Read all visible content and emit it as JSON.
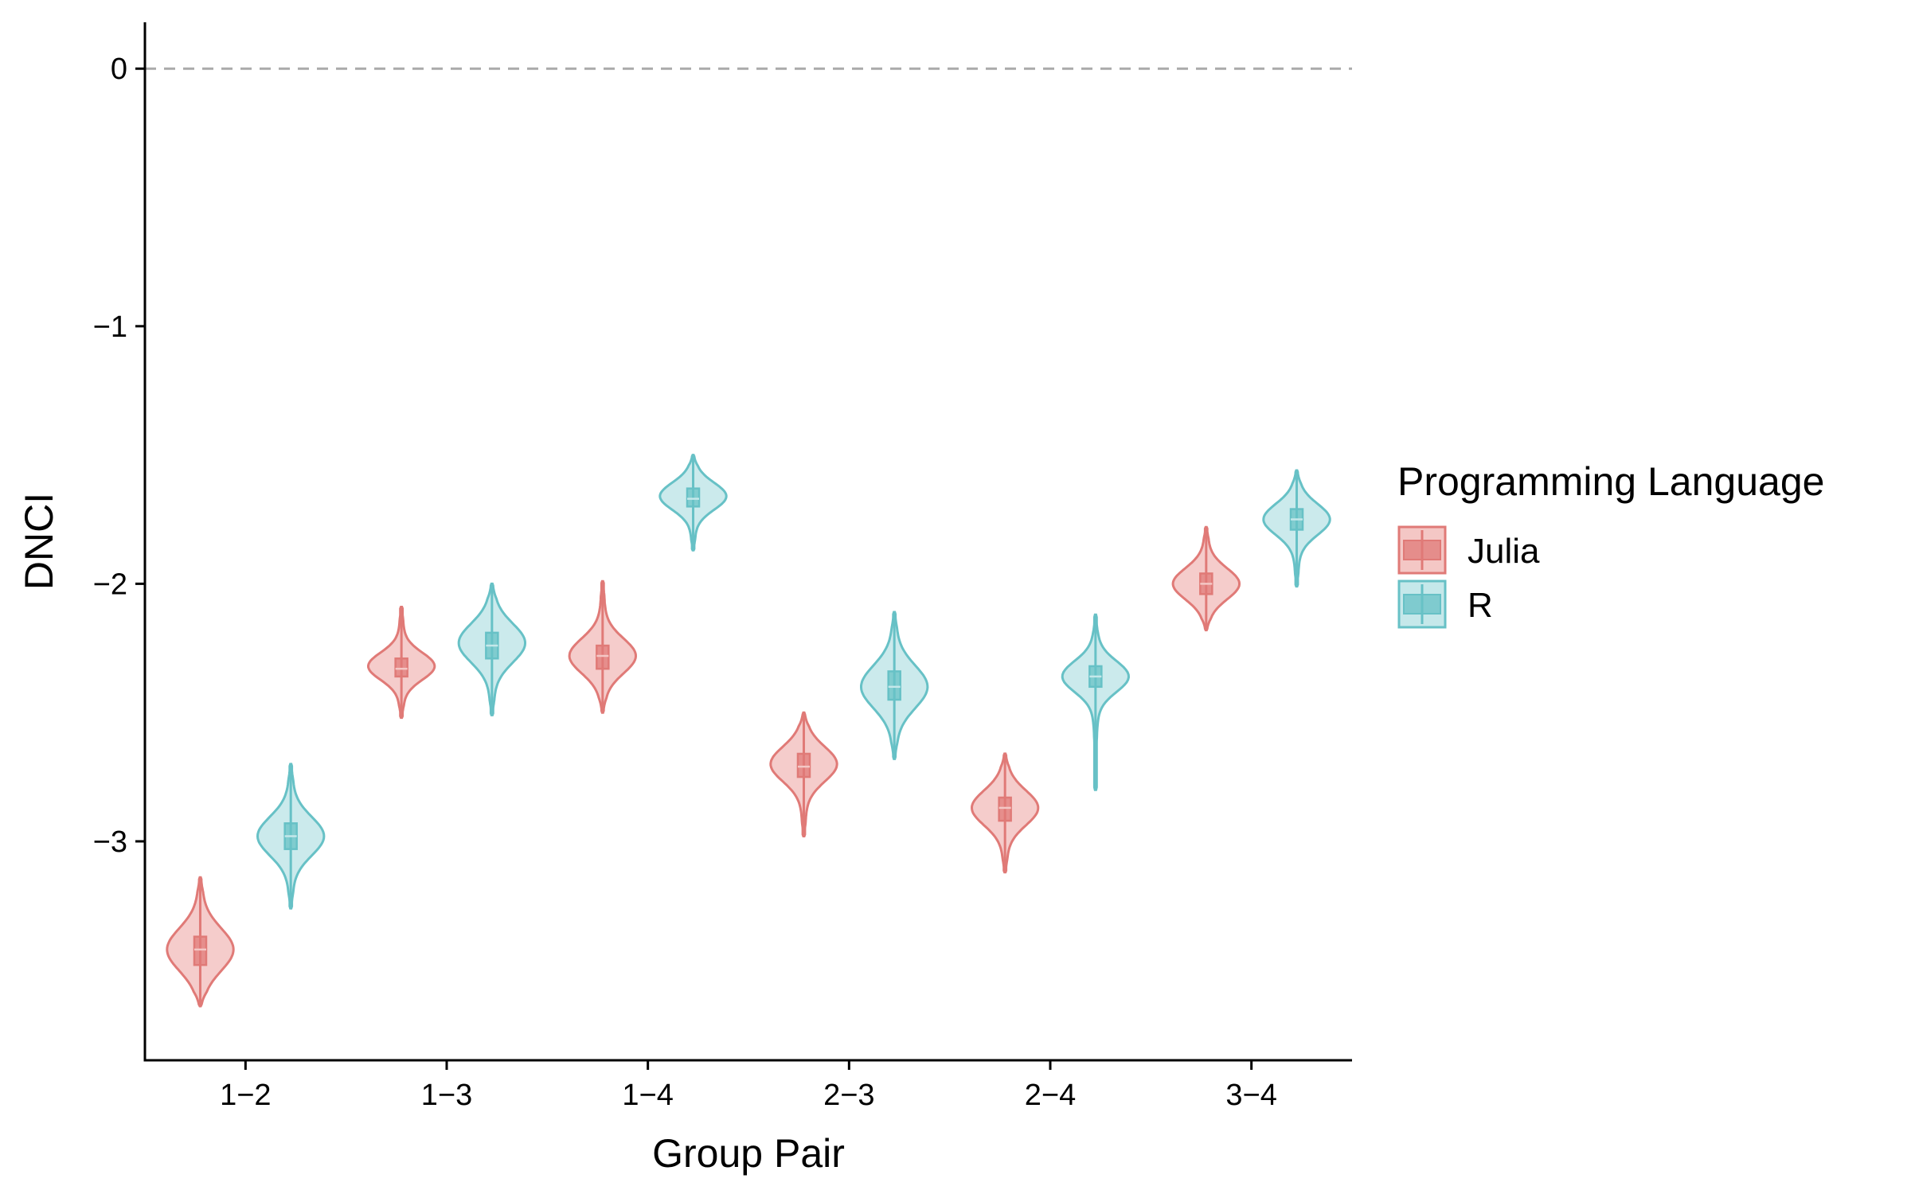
{
  "chart_data": {
    "type": "violin",
    "xlabel": "Group Pair",
    "ylabel": "DNCI",
    "categories": [
      "1−2",
      "1−3",
      "1−4",
      "2−3",
      "2−4",
      "3−4"
    ],
    "ylim": [
      -3.85,
      0.18
    ],
    "yticks": [
      0,
      -1,
      -2,
      -3
    ],
    "ytick_labels": [
      "0",
      "−1",
      "−2",
      "−3"
    ],
    "reference_line": {
      "y": 0,
      "style": "dashed",
      "color": "#aaaaaa"
    },
    "grid": false,
    "legend": {
      "title": "Programming Language",
      "placement": "right"
    },
    "series": [
      {
        "name": "Julia",
        "color": "#e07a77",
        "fill": "#f4c7c5",
        "violins": [
          {
            "min": -3.64,
            "q1": -3.48,
            "median": -3.42,
            "q3": -3.37,
            "max": -3.14,
            "mode": -3.42
          },
          {
            "min": -2.52,
            "q1": -2.36,
            "median": -2.33,
            "q3": -2.29,
            "max": -2.09,
            "mode": -2.32
          },
          {
            "min": -2.5,
            "q1": -2.33,
            "median": -2.28,
            "q3": -2.24,
            "max": -1.99,
            "mode": -2.28
          },
          {
            "min": -2.98,
            "q1": -2.75,
            "median": -2.71,
            "q3": -2.66,
            "max": -2.5,
            "mode": -2.7
          },
          {
            "min": -3.12,
            "q1": -2.92,
            "median": -2.87,
            "q3": -2.83,
            "max": -2.66,
            "mode": -2.87
          },
          {
            "min": -2.18,
            "q1": -2.04,
            "median": -2.0,
            "q3": -1.96,
            "max": -1.78,
            "mode": -2.0
          }
        ]
      },
      {
        "name": "R",
        "color": "#67c1c6",
        "fill": "#c5e8ea",
        "violins": [
          {
            "min": -3.26,
            "q1": -3.03,
            "median": -2.98,
            "q3": -2.93,
            "max": -2.7,
            "mode": -2.98
          },
          {
            "min": -2.51,
            "q1": -2.29,
            "median": -2.24,
            "q3": -2.19,
            "max": -2.0,
            "mode": -2.23
          },
          {
            "min": -1.87,
            "q1": -1.7,
            "median": -1.67,
            "q3": -1.63,
            "max": -1.5,
            "mode": -1.66
          },
          {
            "min": -2.68,
            "q1": -2.45,
            "median": -2.4,
            "q3": -2.34,
            "max": -2.11,
            "mode": -2.4
          },
          {
            "min": -2.8,
            "q1": -2.4,
            "median": -2.36,
            "q3": -2.32,
            "max": -2.12,
            "mode": -2.36
          },
          {
            "min": -2.01,
            "q1": -1.79,
            "median": -1.75,
            "q3": -1.71,
            "max": -1.56,
            "mode": -1.75
          }
        ]
      }
    ]
  }
}
